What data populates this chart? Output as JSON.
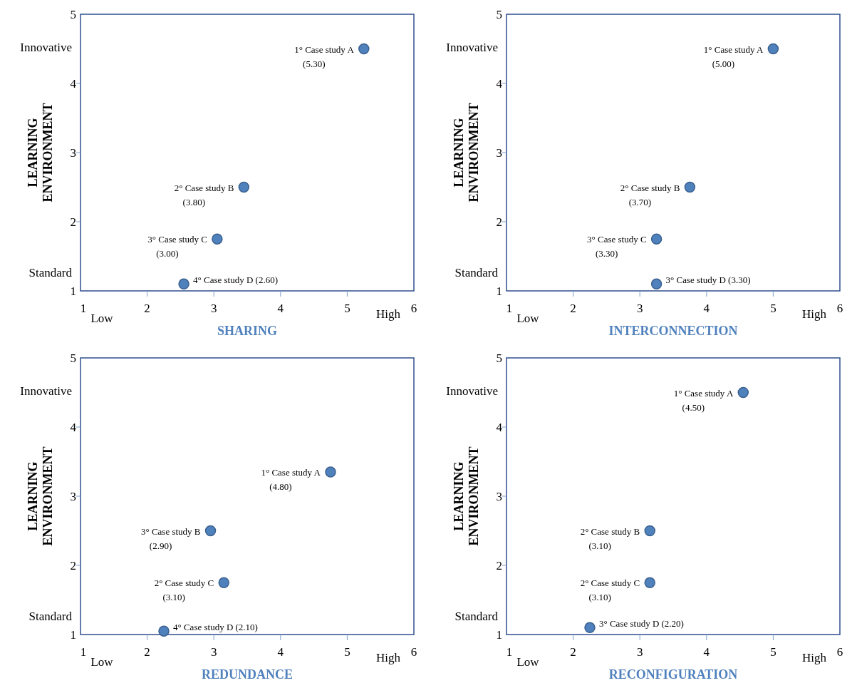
{
  "chart_data": [
    {
      "type": "scatter",
      "xlabel": "SHARING",
      "ylabel": "LEARNING ENVIRONMENT",
      "marker": "circle",
      "xlim": [
        1,
        6
      ],
      "ylim": [
        1,
        5
      ],
      "xticks": [
        1,
        2,
        3,
        4,
        5,
        6
      ],
      "yticks": [
        1,
        2,
        3,
        4,
        5
      ],
      "series": [
        {
          "color": "#4f81bd",
          "x": [
            5.25,
            3.45,
            3.05,
            2.55
          ],
          "values": [
            4.5,
            2.5,
            1.75,
            1.1
          ]
        }
      ],
      "annotations": [
        "Innovative",
        "Standard",
        "Low",
        "High",
        {
          "text": "1° Case study A\n(5.30)",
          "x": 5.25,
          "y": 4.5
        },
        {
          "text": "2° Case study B\n(3.80)",
          "x": 3.45,
          "y": 2.5
        },
        {
          "text": "3° Case study C\n(3.00)",
          "x": 3.05,
          "y": 1.75
        },
        {
          "text": "4° Case study D (2.60)",
          "x": 2.55,
          "y": 1.1
        }
      ]
    },
    {
      "type": "scatter",
      "xlabel": "INTERCONNECTION",
      "ylabel": "LEARNING ENVIRONMENT",
      "marker": "circle",
      "xlim": [
        1,
        6
      ],
      "ylim": [
        1,
        5
      ],
      "xticks": [
        1,
        2,
        3,
        4,
        5,
        6
      ],
      "yticks": [
        1,
        2,
        3,
        4,
        5
      ],
      "series": [
        {
          "color": "#4f81bd",
          "x": [
            5.0,
            3.75,
            3.25,
            3.25
          ],
          "values": [
            4.5,
            2.5,
            1.75,
            1.1
          ]
        }
      ],
      "annotations": [
        "Innovative",
        "Standard",
        "Low",
        "High",
        {
          "text": "1° Case study A\n(5.00)",
          "x": 5.0,
          "y": 4.5
        },
        {
          "text": "2° Case study B\n(3.70)",
          "x": 3.75,
          "y": 2.5
        },
        {
          "text": "3° Case study C\n(3.30)",
          "x": 3.25,
          "y": 1.75
        },
        {
          "text": "3° Case study D (3.30)",
          "x": 3.25,
          "y": 1.1
        }
      ]
    },
    {
      "type": "scatter",
      "xlabel": "REDUNDANCE",
      "ylabel": "LEARNING ENVIRONMENT",
      "marker": "circle",
      "xlim": [
        1,
        6
      ],
      "ylim": [
        1,
        5
      ],
      "xticks": [
        1,
        2,
        3,
        4,
        5,
        6
      ],
      "yticks": [
        1,
        2,
        3,
        4,
        5
      ],
      "series": [
        {
          "color": "#4f81bd",
          "x": [
            4.75,
            2.95,
            3.15,
            2.25
          ],
          "values": [
            3.35,
            2.5,
            1.75,
            1.05
          ]
        }
      ],
      "annotations": [
        "Innovative",
        "Standard",
        "Low",
        "High",
        {
          "text": "1° Case study A\n(4.80)",
          "x": 4.75,
          "y": 3.35
        },
        {
          "text": "3° Case study B\n(2.90)",
          "x": 2.95,
          "y": 2.5
        },
        {
          "text": "2° Case study C\n(3.10)",
          "x": 3.15,
          "y": 1.75
        },
        {
          "text": "4° Case study D (2.10)",
          "x": 2.25,
          "y": 1.05
        }
      ]
    },
    {
      "type": "scatter",
      "xlabel": "RECONFIGURATION",
      "ylabel": "LEARNING ENVIRONMENT",
      "marker": "circle",
      "xlim": [
        1,
        6
      ],
      "ylim": [
        1,
        5
      ],
      "xticks": [
        1,
        2,
        3,
        4,
        5,
        6
      ],
      "yticks": [
        1,
        2,
        3,
        4,
        5
      ],
      "series": [
        {
          "color": "#4f81bd",
          "x": [
            4.55,
            3.15,
            3.15,
            2.25
          ],
          "values": [
            4.5,
            2.5,
            1.75,
            1.1
          ]
        }
      ],
      "annotations": [
        "Innovative",
        "Standard",
        "Low",
        "High",
        {
          "text": "1° Case study A\n(4.50)",
          "x": 4.55,
          "y": 4.5
        },
        {
          "text": "2° Case study B\n(3.10)",
          "x": 3.15,
          "y": 2.5
        },
        {
          "text": "2° Case study C\n(3.10)",
          "x": 3.15,
          "y": 1.75
        },
        {
          "text": "3° Case study D (2.20)",
          "x": 2.25,
          "y": 1.1
        }
      ]
    }
  ]
}
